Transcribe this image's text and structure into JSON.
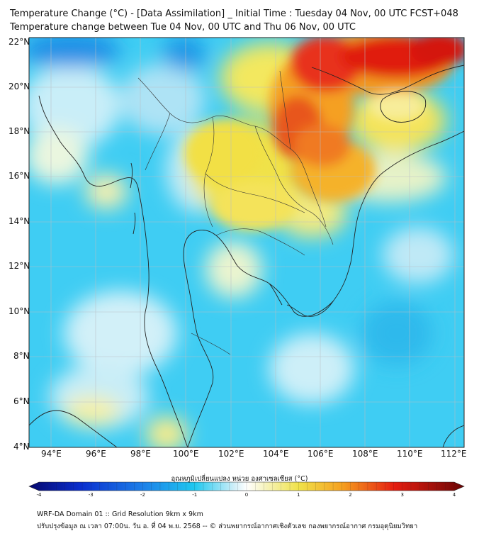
{
  "title_line1": "Temperature Change (°C) - [Data Assimilation] _ Initial Time : Tuesday 04 Nov, 00 UTC FCST+048",
  "title_line2": "Temperature change between Tue 04 Nov, 00 UTC and Thu 06 Nov, 00 UTC",
  "lat_labels": [
    "22°N",
    "20°N",
    "18°N",
    "16°N",
    "14°N",
    "12°N",
    "10°N",
    "8°N",
    "6°N",
    "4°N"
  ],
  "lon_labels": [
    "94°E",
    "96°E",
    "98°E",
    "100°E",
    "102°E",
    "104°E",
    "106°E",
    "108°E",
    "110°E",
    "112°E"
  ],
  "colorbar": {
    "label": "อุณหภูมิเปลี่ยนแปลง หน่วย องศาเซลเซียส (°C)",
    "ticks": [
      "-4",
      "-3",
      "-2",
      "-1",
      "0",
      "1",
      "2",
      "3",
      "4"
    ],
    "min": -4,
    "max": 4
  },
  "footer_line1": "WRF-DA Domain 01 :: Grid Resolution 9km x 9km",
  "footer_line2": "ปรับปรุงข้อมูล ณ เวลา 07:00น. วัน อ. ที่ 04 พ.ย. 2568 -- © ส่วนพยากรณ์อากาศเชิงตัวเลข กองพยากรณ์อากาศ กรมอุตุนิยมวิทยา",
  "colors": {
    "cool": "#1ec8f0",
    "neutral": "#d8f4fb",
    "warm_yellow": "#f0e24a",
    "warm_orange": "#f5a020",
    "hot_red": "#e51d10"
  }
}
